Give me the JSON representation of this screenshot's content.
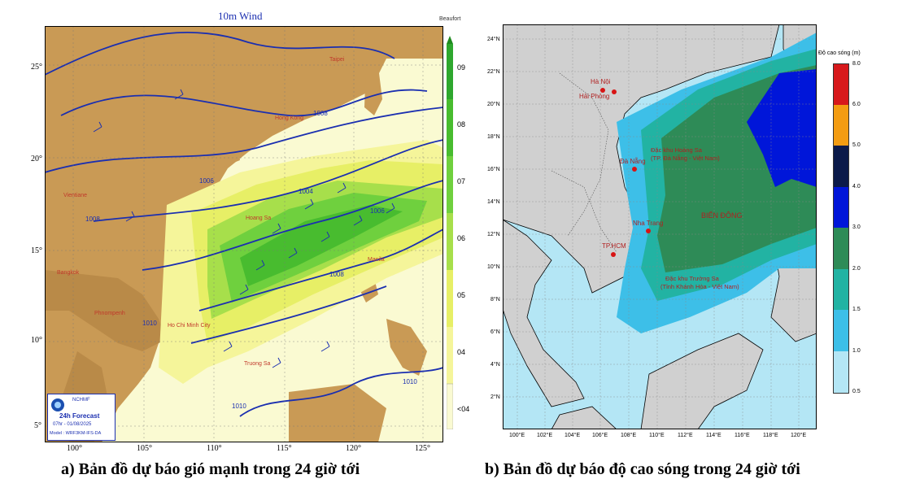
{
  "panel_a": {
    "title": "10m Wind",
    "colorbar_unit": "Beaufort",
    "colorbar_labels": [
      "09",
      "08",
      "07",
      "06",
      "05",
      "04",
      "<04"
    ],
    "colorbar_colors": [
      "#2ea72e",
      "#48bc2f",
      "#6fd03e",
      "#a7df4b",
      "#e7ef66",
      "#f5f59a",
      "#fafad2"
    ],
    "lat_ticks": [
      "25°",
      "20°",
      "15°",
      "10°",
      "5°"
    ],
    "lon_ticks": [
      "100°",
      "105°",
      "110°",
      "115°",
      "120°",
      "125°"
    ],
    "isobar_labels": [
      "1004",
      "1006",
      "1008",
      "1006",
      "1008",
      "1008",
      "1010",
      "1010",
      "1010"
    ],
    "places": [
      "Hong Kong",
      "Vientiane",
      "Bangkok",
      "Phnompenh",
      "Ho Chi Minh City",
      "Truong Sa",
      "Hoang Sa",
      "Manila",
      "Taipei"
    ],
    "logo": {
      "org": "NCHMF",
      "forecast": "24h Forecast",
      "valid": "07hr - 01/08/2025",
      "model": "Model : WRF3KM-IFS-DA"
    },
    "caption": "a) Bản đồ dự báo gió mạnh trong 24 giờ tới"
  },
  "panel_b": {
    "colorbar_title": "Độ cao sóng (m)",
    "colorbar_labels": [
      "8.0",
      "6.0",
      "5.0",
      "4.0",
      "3.0",
      "2.0",
      "1.5",
      "1.0",
      "0.5"
    ],
    "colorbar_colors": [
      "#d7191c",
      "#f39c12",
      "#0b1a4a",
      "#0016d9",
      "#2e8b57",
      "#22b3a3",
      "#3dbfe8",
      "#b4e6f5"
    ],
    "lat_ticks": [
      "24°N",
      "22°N",
      "20°N",
      "18°N",
      "16°N",
      "14°N",
      "12°N",
      "10°N",
      "8°N",
      "6°N",
      "4°N",
      "2°N"
    ],
    "lon_ticks": [
      "100°E",
      "102°E",
      "104°E",
      "106°E",
      "108°E",
      "110°E",
      "112°E",
      "114°E",
      "116°E",
      "118°E",
      "120°E"
    ],
    "cities": [
      "Hà Nội",
      "Hải Phòng",
      "Đà Nẵng",
      "Nha Trang",
      "TP.HCM"
    ],
    "hoang_sa_line1": "Đặc khu Hoàng Sa",
    "hoang_sa_line2": "(TP. Đà Nẵng - Việt Nam)",
    "truong_sa_line1": "Đặc khu Trường Sa",
    "truong_sa_line2": "(Tỉnh Khánh Hòa - Việt Nam)",
    "sea_label": "BIỂN ĐÔNG",
    "caption": "b) Bản đồ dự báo độ cao sóng trong 24 giờ tới"
  }
}
